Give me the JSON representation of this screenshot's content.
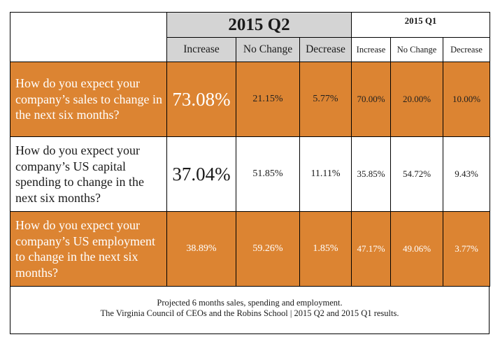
{
  "periods": {
    "current": "2015 Q2",
    "previous": "2015 Q1"
  },
  "columns": {
    "increase": "Increase",
    "no_change": "No Change",
    "decrease": "Decrease"
  },
  "rows": [
    {
      "question": "How do you expect your company’s sales to change in the next six months?",
      "q2": {
        "increase": "73.08%",
        "no_change": "21.15%",
        "decrease": "5.77%"
      },
      "q1": {
        "increase": "70.00%",
        "no_change": "20.00%",
        "decrease": "10.00%"
      }
    },
    {
      "question": "How do you expect your company’s US capital spending to change in the next six months?",
      "q2": {
        "increase": "37.04%",
        "no_change": "51.85%",
        "decrease": "11.11%"
      },
      "q1": {
        "increase": "35.85%",
        "no_change": "54.72%",
        "decrease": "9.43%"
      }
    },
    {
      "question": "How do you expect your company’s US employment to change in the next six months?",
      "q2": {
        "increase": "38.89%",
        "no_change": "59.26%",
        "decrease": "1.85%"
      },
      "q1": {
        "increase": "47.17%",
        "no_change": "49.06%",
        "decrease": "3.77%"
      }
    }
  ],
  "footer": {
    "line1": "Projected 6 months sales, spending and employment.",
    "line2": "The Virginia Council of CEOs and the Robins School | 2015 Q2 and 2015 Q1 results."
  },
  "colors": {
    "accent": "#dc8432",
    "header_gray": "#d4d4d4"
  }
}
